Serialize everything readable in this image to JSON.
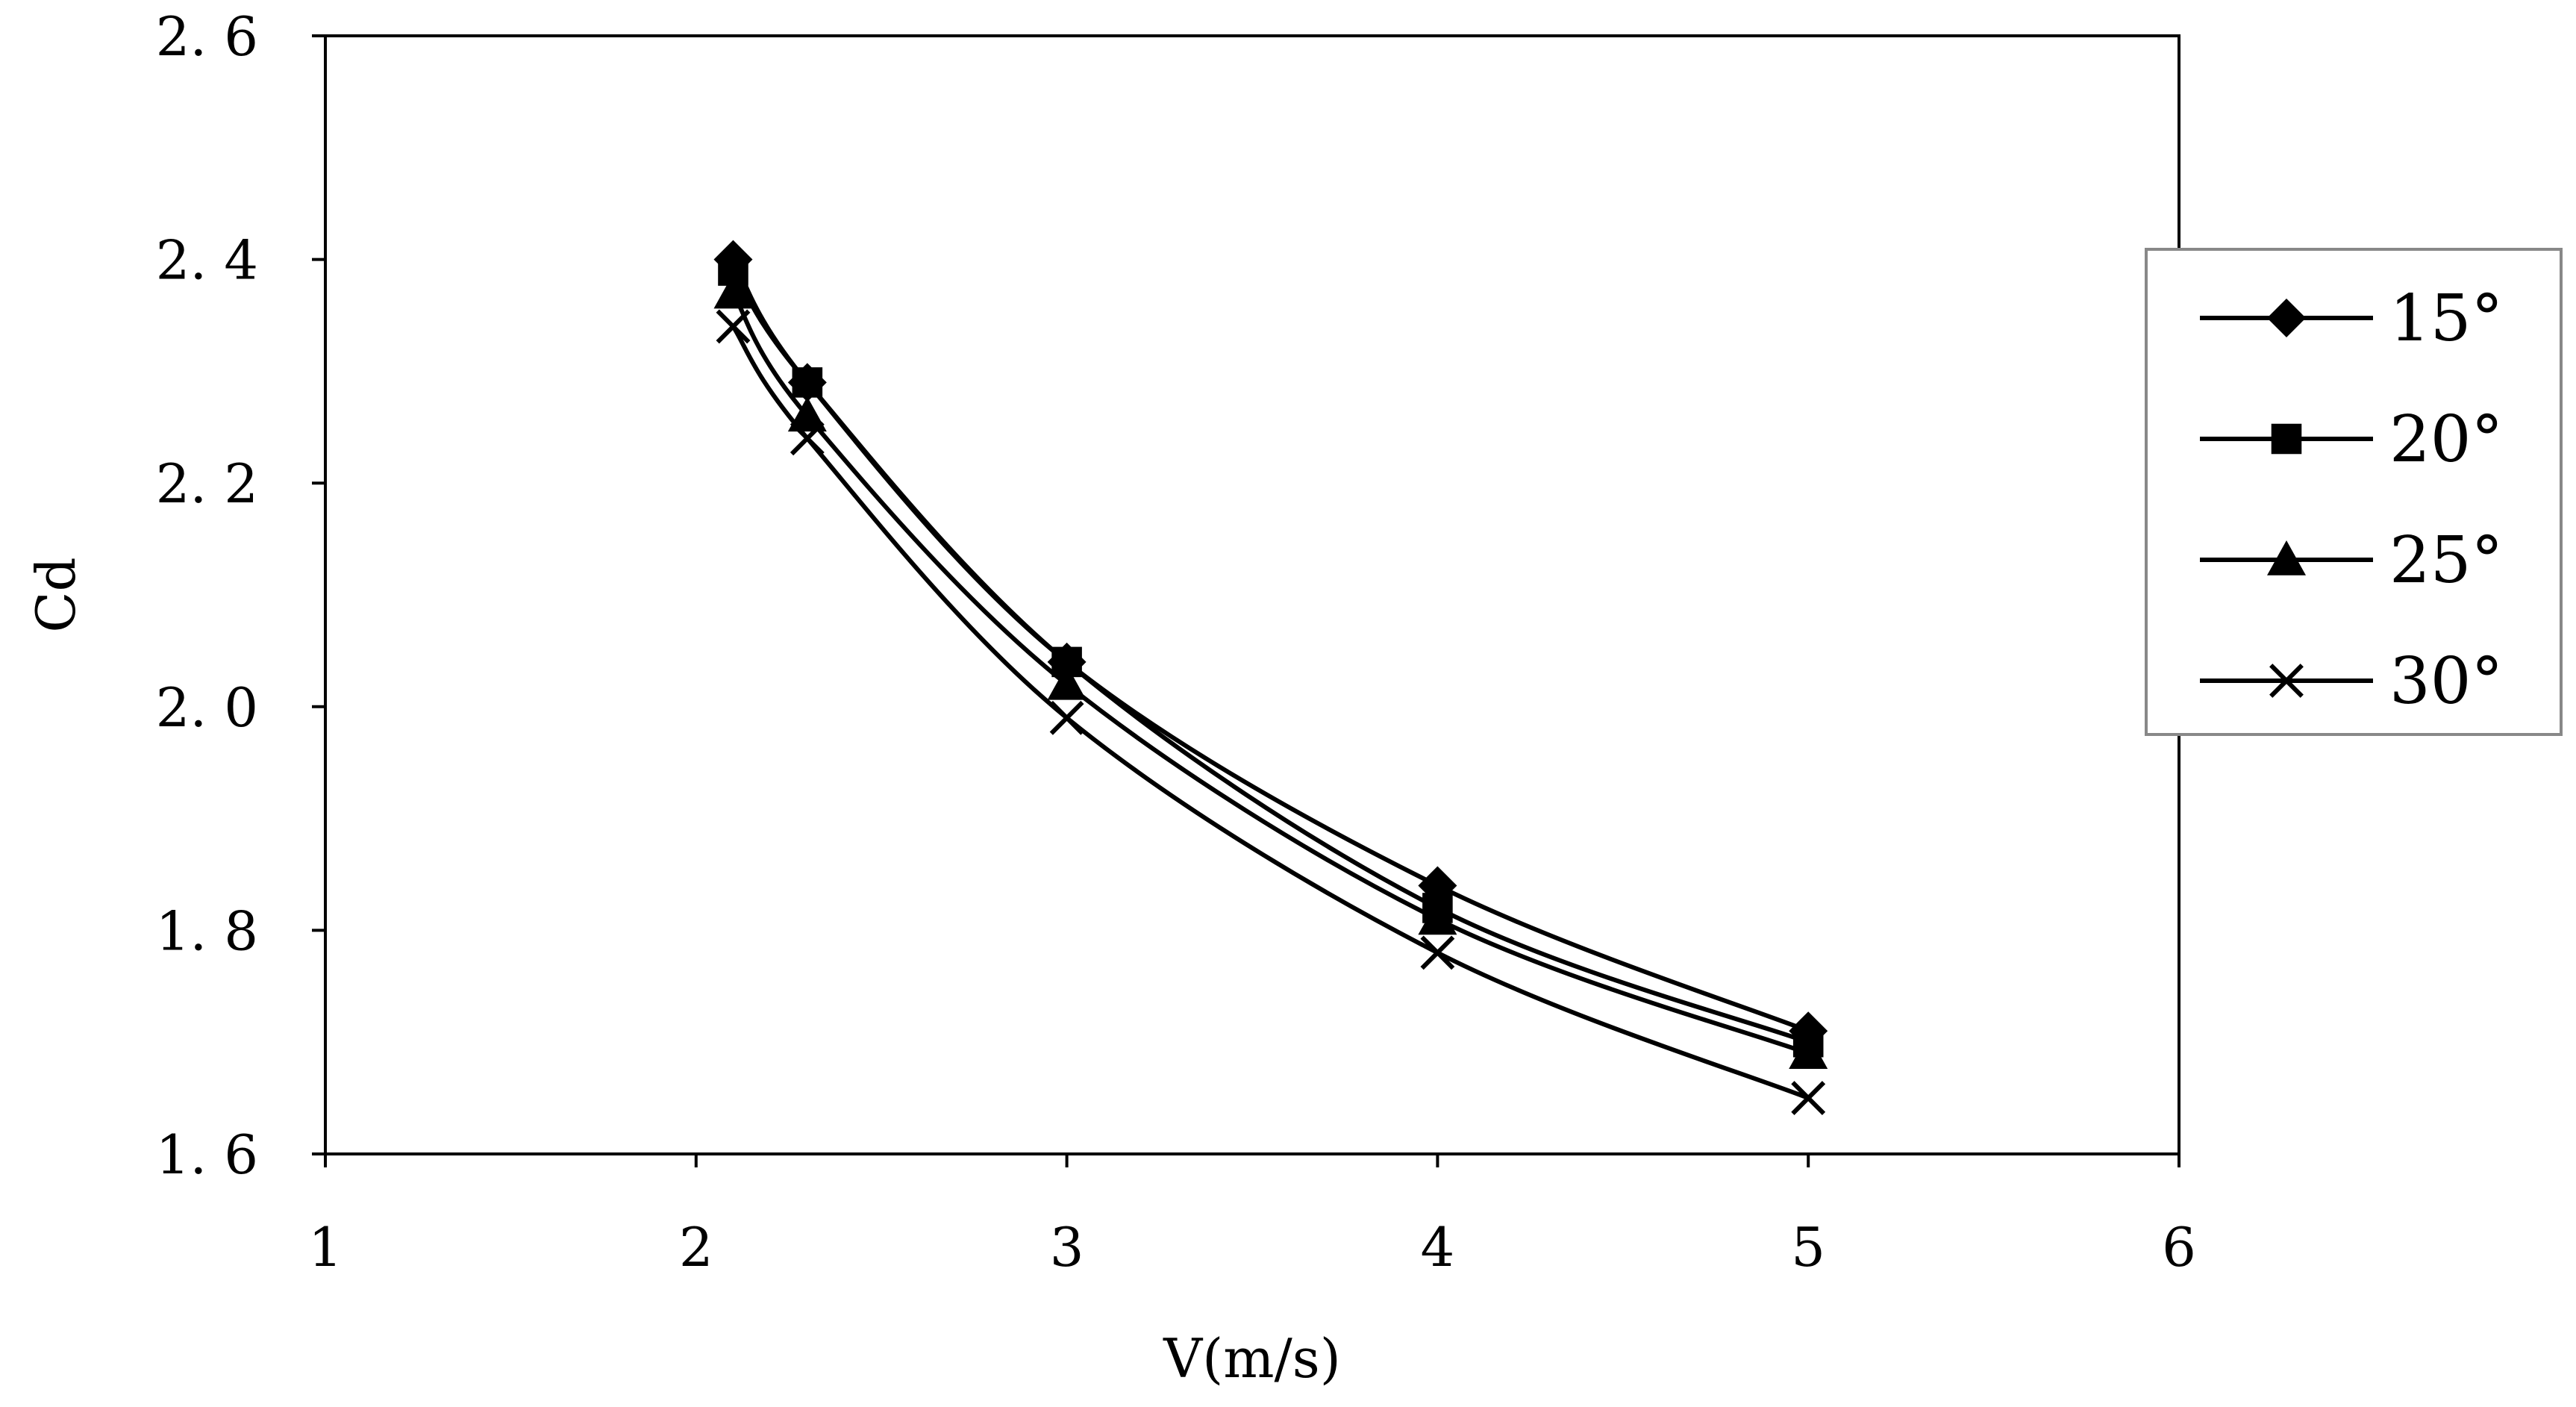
{
  "chart_data": {
    "type": "line",
    "title": "",
    "xlabel": "V(m/s)",
    "ylabel": "Cd",
    "xlim": [
      1,
      6
    ],
    "ylim": [
      1.6,
      2.6
    ],
    "x_ticks": [
      "1",
      "2",
      "3",
      "4",
      "5",
      "6"
    ],
    "y_ticks": [
      "1. 6",
      "1. 8",
      "2. 0",
      "2. 2",
      "2. 4",
      "2. 6"
    ],
    "grid": false,
    "legend_position": "right",
    "series": [
      {
        "name": "15°",
        "marker": "diamond",
        "x": [
          2.1,
          2.3,
          3,
          4,
          5
        ],
        "y": [
          2.4,
          2.29,
          2.04,
          1.84,
          1.71
        ]
      },
      {
        "name": "20°",
        "marker": "square",
        "x": [
          2.1,
          2.3,
          3,
          4,
          5
        ],
        "y": [
          2.39,
          2.29,
          2.04,
          1.82,
          1.7
        ]
      },
      {
        "name": "25°",
        "marker": "triangle",
        "x": [
          2.1,
          2.3,
          3,
          4,
          5
        ],
        "y": [
          2.37,
          2.26,
          2.02,
          1.81,
          1.69
        ]
      },
      {
        "name": "30°",
        "marker": "x",
        "x": [
          2.1,
          2.3,
          3,
          4,
          5
        ],
        "y": [
          2.34,
          2.24,
          1.99,
          1.78,
          1.65
        ]
      }
    ],
    "colors": {
      "line": "#000000",
      "background": "#ffffff",
      "frame": "#000000"
    }
  }
}
